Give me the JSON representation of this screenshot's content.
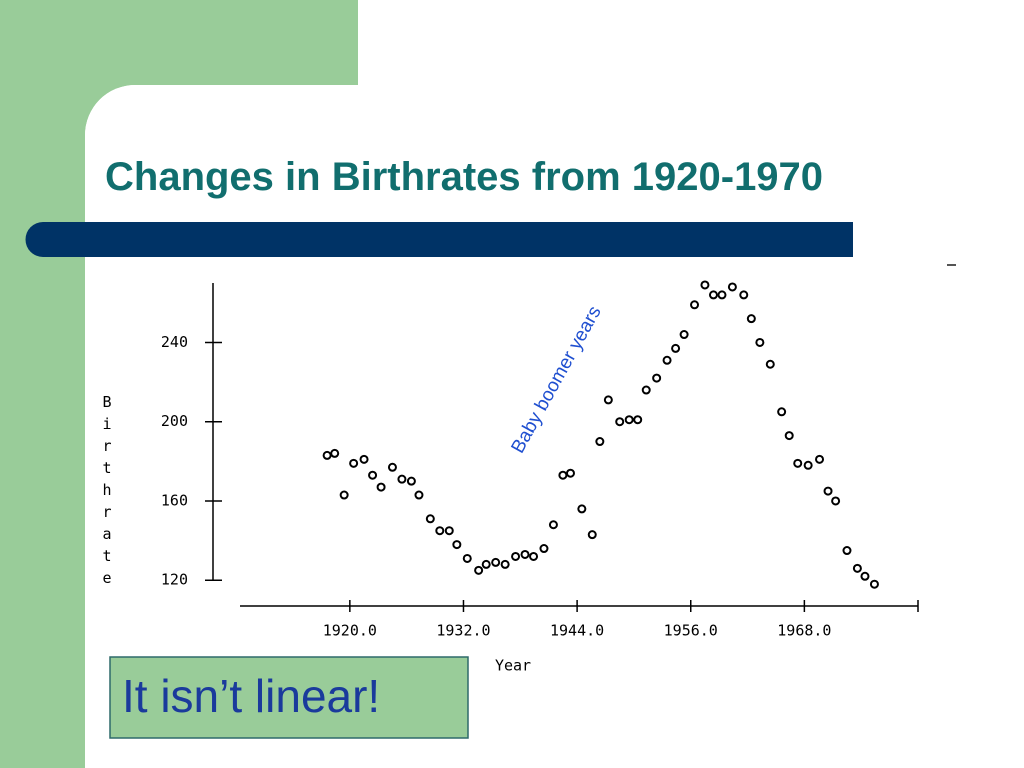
{
  "chart_data": {
    "type": "scatter",
    "title": "Changes in Birthrates from 1920-1970",
    "x_label": "Year",
    "y_label": "Birthrate",
    "annotation": "Baby boomer years",
    "color": "#000000",
    "x": [
      1917.6,
      1918.4,
      1919.4,
      1920.4,
      1921.5,
      1922.4,
      1923.3,
      1924.5,
      1925.5,
      1926.5,
      1927.3,
      1928.5,
      1929.5,
      1930.5,
      1931.3,
      1932.4,
      1933.6,
      1934.4,
      1935.4,
      1936.4,
      1937.5,
      1938.5,
      1939.4,
      1940.5,
      1941.5,
      1942.5,
      1943.3,
      1944.5,
      1945.6,
      1946.4,
      1947.3,
      1948.5,
      1949.5,
      1950.4,
      1951.3,
      1952.4,
      1953.5,
      1954.4,
      1955.3,
      1956.4,
      1957.5,
      1958.4,
      1959.3,
      1960.4,
      1961.6,
      1962.4,
      1963.3,
      1964.4,
      1965.6,
      1966.4,
      1967.3,
      1968.4,
      1969.6,
      1970.5,
      1971.3,
      1972.5,
      1973.6,
      1974.4,
      1975.4
    ],
    "values": [
      183,
      184,
      163,
      179,
      181,
      173,
      167,
      177,
      171,
      170,
      163,
      151,
      145,
      145,
      138,
      131,
      125,
      128,
      129,
      128,
      132,
      133,
      132,
      136,
      148,
      173,
      174,
      156,
      143,
      190,
      211,
      200,
      201,
      201,
      216,
      222,
      231,
      237,
      244,
      259,
      269,
      264,
      264,
      268,
      264,
      252,
      240,
      229,
      205,
      193,
      179,
      178,
      181,
      165,
      160,
      135,
      126,
      122,
      118
    ],
    "xlim": [
      1908.4,
      1980
    ],
    "ylim": [
      107,
      270
    ],
    "xticks": [
      {
        "value": 1920,
        "label": "1920.0"
      },
      {
        "value": 1932,
        "label": "1932.0"
      },
      {
        "value": 1944,
        "label": "1944.0"
      },
      {
        "value": 1956,
        "label": "1956.0"
      },
      {
        "value": 1968,
        "label": "1968.0"
      }
    ],
    "yticks": [
      120,
      160,
      200,
      240
    ]
  },
  "callout": "It isn’t linear!"
}
